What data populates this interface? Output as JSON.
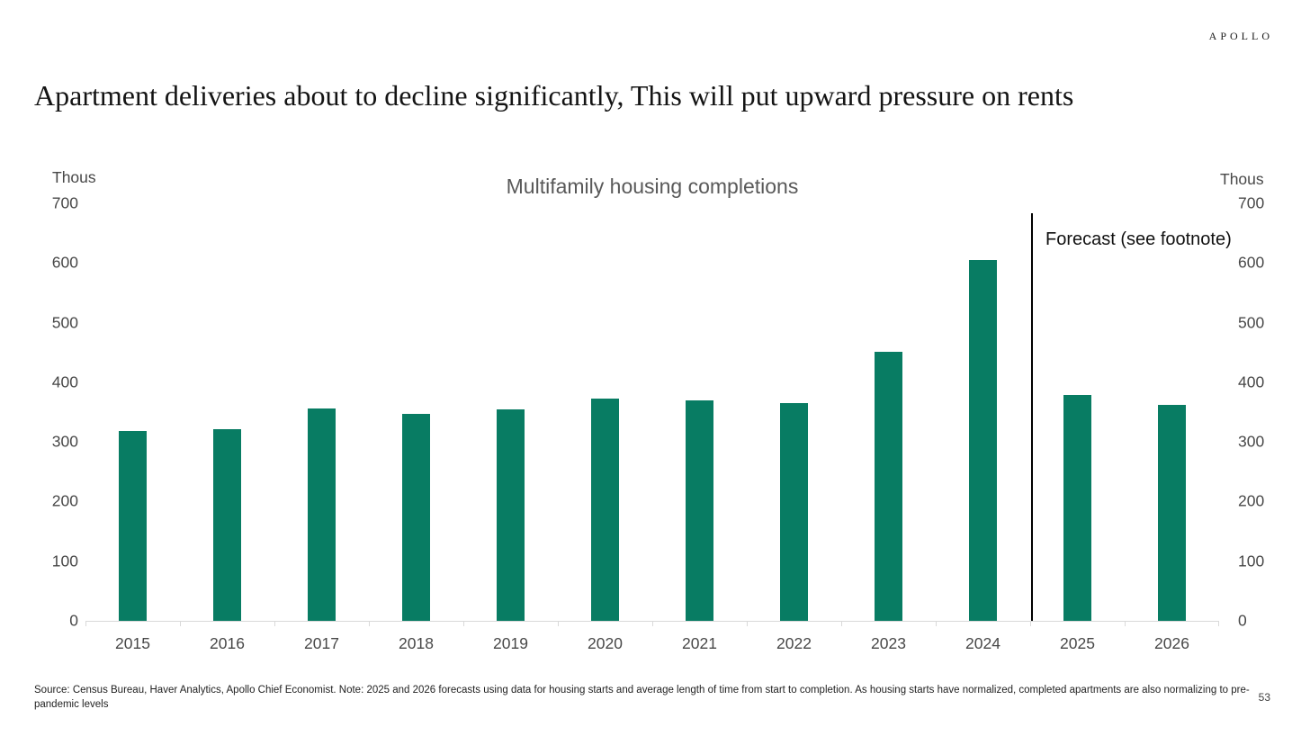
{
  "logo": "APOLLO",
  "header": {
    "title": "Apartment deliveries about to decline significantly, This will put upward pressure on rents"
  },
  "chart_data": {
    "type": "bar",
    "title": "Multifamily housing completions",
    "unit_label": "Thous",
    "categories": [
      "2015",
      "2016",
      "2017",
      "2018",
      "2019",
      "2020",
      "2021",
      "2022",
      "2023",
      "2024",
      "2025",
      "2026"
    ],
    "values": [
      318,
      322,
      356,
      347,
      355,
      372,
      370,
      365,
      451,
      605,
      378,
      362
    ],
    "ylim": [
      0,
      700
    ],
    "yticks": [
      700,
      600,
      500,
      400,
      300,
      200,
      100,
      0
    ],
    "ylabel_left": "Thous",
    "ylabel_right": "Thous",
    "grid": false,
    "bar_color": "#087c63",
    "axis_line_color": "#d9d9d9",
    "forecast": {
      "label": "Forecast (see footnote)",
      "from_category": "2025",
      "divider_color": "#000000"
    }
  },
  "footer": {
    "source": "Source: Census Bureau, Haver Analytics, Apollo Chief Economist. Note: 2025 and 2026 forecasts using data for housing starts and average length of time from start to completion. As housing starts have normalized, completed apartments are also normalizing to pre-pandemic levels",
    "page_number": "53"
  }
}
